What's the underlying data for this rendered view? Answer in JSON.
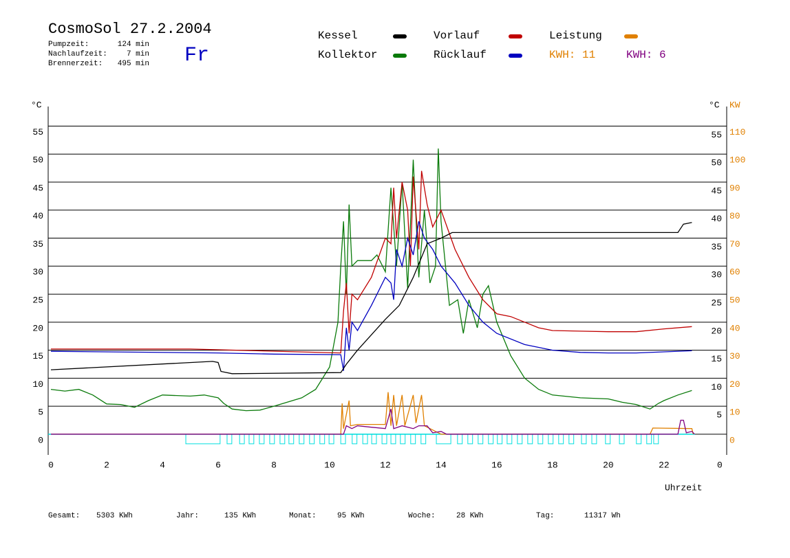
{
  "chart_data": {
    "type": "line",
    "title": "CosmoSol 27.2.2004",
    "weekday": "Fr",
    "info": [
      [
        "Pumpzeit:",
        "124 min"
      ],
      [
        "Nachlaufzeit:",
        "7 min"
      ],
      [
        "Brennerzeit:",
        "495 min"
      ]
    ],
    "y_label": "°C",
    "y2_label_c": "°C",
    "y2_label": "KW",
    "x_label": "Uhrzeit",
    "footer": [
      [
        "Gesamt:",
        "5303 KWh"
      ],
      [
        "Jahr:",
        "135 KWh"
      ],
      [
        "Monat:",
        "95 KWh"
      ],
      [
        "Woche:",
        "28 KWh"
      ],
      [
        "Tag:",
        "11317 Wh"
      ]
    ],
    "annotations": [
      {
        "text": "KWH: 11",
        "color": "#e08000"
      },
      {
        "text": "KWH: 6",
        "color": "#800080"
      }
    ],
    "xlim": [
      -0.1,
      24.25
    ],
    "xticks": [
      0,
      2,
      4,
      6,
      8,
      10,
      12,
      14,
      16,
      18,
      20,
      22,
      {
        "value": 24,
        "label": "0"
      }
    ],
    "ylim": [
      -3.7,
      58.5
    ],
    "yticks": [
      0,
      5,
      10,
      15,
      20,
      25,
      30,
      35,
      40,
      45,
      50,
      55
    ],
    "y2ticks_c": [
      5,
      10,
      15,
      20,
      25,
      30,
      35,
      40,
      45,
      50,
      55
    ],
    "y2lim": [
      -7.4,
      117
    ],
    "y2ticks": [
      0,
      10,
      20,
      30,
      40,
      50,
      60,
      70,
      80,
      90,
      100,
      110
    ],
    "grid": true,
    "series": [
      {
        "name": "Kollektor",
        "color": "#0a7a0a",
        "x": [
          0,
          0.5,
          1,
          1.5,
          2,
          2.5,
          3,
          3.5,
          4,
          5,
          5.5,
          6,
          6.2,
          6.5,
          7,
          7.5,
          8,
          9,
          9.5,
          10,
          10.3,
          10.4,
          10.5,
          10.6,
          10.7,
          10.8,
          11,
          11.5,
          11.7,
          12,
          12.2,
          12.4,
          12.6,
          12.8,
          13,
          13.2,
          13.4,
          13.6,
          13.8,
          13.9,
          14,
          14.3,
          14.6,
          14.8,
          15,
          15.3,
          15.5,
          15.7,
          16,
          16.5,
          17,
          17.5,
          18,
          19,
          20,
          20.5,
          21,
          21.5,
          21.8,
          22,
          22.5,
          23
        ],
        "values": [
          8,
          7.7,
          8,
          7,
          5.4,
          5.3,
          4.8,
          6,
          7,
          6.8,
          7,
          6.5,
          5.5,
          4.5,
          4.2,
          4.3,
          5,
          6.5,
          8,
          12,
          20,
          30,
          38,
          25,
          41,
          30,
          31,
          31,
          32,
          29,
          44,
          30,
          45,
          26,
          49,
          28,
          40,
          27,
          30,
          51,
          38,
          23,
          24,
          18,
          24,
          19,
          25,
          26.5,
          20,
          14,
          10,
          8,
          7,
          6.5,
          6.3,
          5.7,
          5.3,
          4.5,
          5.5,
          6,
          7,
          7.8
        ]
      },
      {
        "name": "Vorlauf",
        "color": "#c00000",
        "x": [
          0,
          5,
          10.4,
          10.5,
          10.6,
          10.7,
          10.8,
          11,
          11.5,
          12,
          12.2,
          12.3,
          12.4,
          12.6,
          12.8,
          12.9,
          13,
          13.2,
          13.3,
          13.5,
          13.7,
          14,
          14.5,
          15,
          15.5,
          16,
          16.5,
          17,
          17.5,
          18,
          19,
          20,
          21,
          22,
          23
        ],
        "values": [
          15.2,
          15.2,
          14.5,
          22,
          27,
          18,
          25,
          24,
          28,
          35,
          34,
          44,
          35,
          45,
          40,
          30,
          46,
          33,
          47,
          41,
          37,
          40,
          33,
          28,
          24,
          21.5,
          21,
          20,
          19,
          18.5,
          18.4,
          18.3,
          18.3,
          18.8,
          19.2
        ]
      },
      {
        "name": "Rücklauf",
        "color": "#0000c0",
        "x": [
          0,
          6,
          8,
          10.4,
          10.5,
          10.6,
          10.7,
          10.8,
          11,
          11.5,
          12,
          12.2,
          12.3,
          12.4,
          12.6,
          12.8,
          13,
          13.2,
          13.4,
          13.7,
          14,
          14.5,
          15,
          15.5,
          16,
          17,
          18,
          19,
          20,
          21,
          22,
          23
        ],
        "values": [
          14.8,
          14.5,
          14.3,
          14.2,
          11.3,
          19,
          15,
          20,
          18.5,
          23,
          28,
          27,
          24,
          33,
          30,
          35,
          32,
          38,
          35,
          33,
          30,
          27,
          23,
          20,
          18,
          16,
          15,
          14.6,
          14.5,
          14.5,
          14.7,
          14.9
        ]
      },
      {
        "name": "Kessel",
        "color": "#000000",
        "x": [
          0,
          5.8,
          6,
          6.1,
          6.5,
          10.4,
          10.6,
          11,
          12,
          12.5,
          13,
          13.5,
          14,
          14.2,
          14.4,
          22.5,
          22.7,
          23
        ],
        "values": [
          11.5,
          13,
          12.8,
          11.2,
          10.8,
          11,
          12.5,
          15,
          20.5,
          23,
          28,
          34,
          35,
          35.5,
          36,
          36,
          37.5,
          37.8
        ]
      },
      {
        "name": "Leistung",
        "color": "#e08000",
        "axis": "y2",
        "x": [
          0,
          10.4,
          10.45,
          10.5,
          10.7,
          10.75,
          11,
          12,
          12.1,
          12.2,
          12.3,
          12.4,
          12.6,
          12.7,
          13,
          13.1,
          13.3,
          13.4,
          13.6,
          14,
          21.5,
          21.6,
          23,
          23.05
        ],
        "values": [
          0,
          0,
          11,
          2,
          12,
          3,
          3.5,
          3.5,
          15,
          3,
          14,
          3,
          14,
          3,
          14,
          4,
          14,
          3,
          2,
          0,
          0,
          2.2,
          2,
          0
        ]
      },
      {
        "color": "#800080",
        "axis": "y2",
        "x": [
          0,
          10.5,
          10.6,
          10.8,
          11,
          11.5,
          12,
          12.2,
          12.3,
          12.6,
          13,
          13.2,
          13.5,
          13.7,
          14,
          14.2,
          22.5,
          22.6,
          22.7,
          22.8,
          23,
          23.1
        ],
        "values": [
          0,
          0,
          3,
          2,
          3,
          2.5,
          2,
          9,
          2,
          3,
          2,
          3,
          3,
          0.5,
          1,
          0,
          0,
          5,
          5,
          0.5,
          1,
          0
        ]
      }
    ],
    "pump_on": [
      [
        4.84,
        6.07
      ],
      [
        6.32,
        6.49
      ],
      [
        6.77,
        6.94
      ],
      [
        7.11,
        7.28
      ],
      [
        7.48,
        7.65
      ],
      [
        7.85,
        8.02
      ],
      [
        8.22,
        8.39
      ],
      [
        8.54,
        8.71
      ],
      [
        8.91,
        9.08
      ],
      [
        9.28,
        9.45
      ],
      [
        9.65,
        9.82
      ],
      [
        9.98,
        10.15
      ],
      [
        10.4,
        10.57
      ],
      [
        10.81,
        10.98
      ],
      [
        11.19,
        11.36
      ],
      [
        11.51,
        11.68
      ],
      [
        11.88,
        12.05
      ],
      [
        12.2,
        12.37
      ],
      [
        12.54,
        12.71
      ],
      [
        12.91,
        13.08
      ],
      [
        13.28,
        13.45
      ],
      [
        13.83,
        14.35
      ],
      [
        14.59,
        14.76
      ],
      [
        14.96,
        15.13
      ],
      [
        15.33,
        15.5
      ],
      [
        15.7,
        15.87
      ],
      [
        16.02,
        16.19
      ],
      [
        16.37,
        16.54
      ],
      [
        16.74,
        16.91
      ],
      [
        17.11,
        17.28
      ],
      [
        17.48,
        17.65
      ],
      [
        17.85,
        18.02
      ],
      [
        18.22,
        18.39
      ],
      [
        18.59,
        18.76
      ],
      [
        19.04,
        19.21
      ],
      [
        19.41,
        19.58
      ],
      [
        19.9,
        20.07
      ],
      [
        20.4,
        20.57
      ],
      [
        21.01,
        21.18
      ],
      [
        21.38,
        21.55
      ],
      [
        21.63,
        21.8
      ]
    ],
    "pump_color": "#00e0e0"
  }
}
